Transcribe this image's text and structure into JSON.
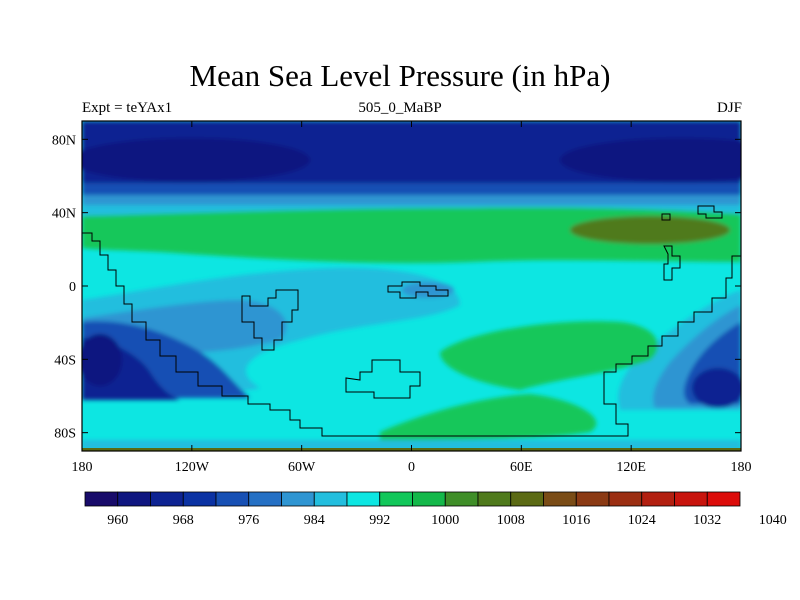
{
  "title": "Mean Sea Level Pressure (in hPa)",
  "left_label": "Expt = teYAx1",
  "center_label": "505_0_MaBP",
  "right_label": "DJF",
  "map": {
    "type": "contour-fill map",
    "lon_range": [
      -180,
      180
    ],
    "lat_range": [
      -90,
      90
    ],
    "lon_ticks": [
      {
        "value": -180,
        "label": "180"
      },
      {
        "value": -120,
        "label": "120W"
      },
      {
        "value": -60,
        "label": "60W"
      },
      {
        "value": 0,
        "label": "0"
      },
      {
        "value": 60,
        "label": "60E"
      },
      {
        "value": 120,
        "label": "120E"
      },
      {
        "value": 180,
        "label": "180"
      }
    ],
    "lat_ticks": [
      {
        "value": 80,
        "label": "80N"
      },
      {
        "value": 40,
        "label": "40N"
      },
      {
        "value": 0,
        "label": "0"
      },
      {
        "value": -40,
        "label": "40S"
      },
      {
        "value": -80,
        "label": "80S"
      }
    ]
  },
  "colorbar": {
    "levels": [
      "960",
      "968",
      "976",
      "984",
      "992",
      "1000",
      "1008",
      "1016",
      "1024",
      "1032",
      "1040"
    ],
    "colors": [
      "#180b6a",
      "#0f1680",
      "#0d2392",
      "#0b32a3",
      "#1750b4",
      "#2570c4",
      "#2f95d2",
      "#23bede",
      "#0de6e2",
      "#12c75a",
      "#14b84a",
      "#3f8e28",
      "#4f7a1c",
      "#5b6a14",
      "#7a4c16",
      "#8b3a14",
      "#9b2e12",
      "#b21f10",
      "#c8140d",
      "#dc0c0a"
    ]
  }
}
